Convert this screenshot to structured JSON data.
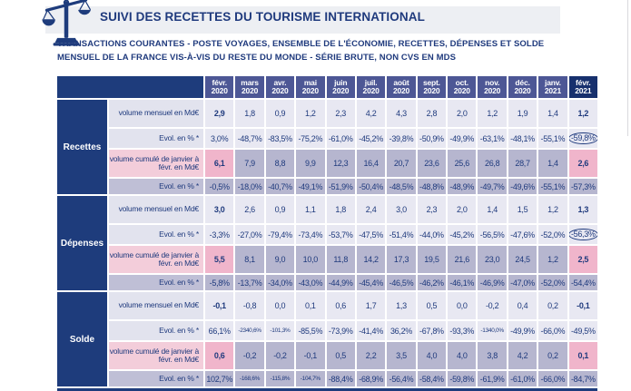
{
  "header": {
    "icon": "scales-of-justice-icon",
    "title": "SUIVI DES RECETTES DU TOURISME INTERNATIONAL",
    "subtitle_line1": "TRANSACTIONS COURANTES - POSTE VOYAGES, ENSEMBLE DE L'ÉCONOMIE, RECETTES, DÉPENSES ET SOLDE",
    "subtitle_line2": "MENSUEL DE LA FRANCE VIS-À-VIS DU RESTE DU MONDE - SÉRIE BRUTE, NON CVS EN MDS"
  },
  "colors": {
    "navy_text": "#1f3a7d",
    "header_dark": "#1e3c7c",
    "header_month": "#4d5795",
    "header_last": "#17306d",
    "row_light": "#e8e8f2",
    "row_light_label": "#e2e3ee",
    "row_dark": "#b6b6cf",
    "row_dark_label": "#bfbfd6",
    "pink_cell": "#f0b5cb",
    "pink_label": "#f3cdda",
    "title_band": "#edeff3"
  },
  "chart_data": {
    "type": "table",
    "columns": [
      {
        "month": "févr.",
        "year": "2020"
      },
      {
        "month": "mars",
        "year": "2020"
      },
      {
        "month": "avr.",
        "year": "2020"
      },
      {
        "month": "mai",
        "year": "2020"
      },
      {
        "month": "juin",
        "year": "2020"
      },
      {
        "month": "juil.",
        "year": "2020"
      },
      {
        "month": "août",
        "year": "2020"
      },
      {
        "month": "sept.",
        "year": "2020"
      },
      {
        "month": "oct.",
        "year": "2020"
      },
      {
        "month": "nov.",
        "year": "2020"
      },
      {
        "month": "déc.",
        "year": "2020"
      },
      {
        "month": "janv.",
        "year": "2021"
      },
      {
        "month": "févr.",
        "year": "2021"
      }
    ],
    "groups": [
      {
        "label": "Recettes",
        "rows": [
          {
            "label": "volume mensuel en Md€",
            "shade": "light",
            "bold_ends": true,
            "values": [
              "2,9",
              "1,8",
              "0,9",
              "1,2",
              "2,3",
              "4,2",
              "4,3",
              "2,8",
              "2,0",
              "1,2",
              "1,9",
              "1,4",
              "1,2"
            ]
          },
          {
            "label": "Evol. en % *",
            "shade": "light",
            "circle_last": true,
            "values": [
              "3,0%",
              "-48,7%",
              "-83,5%",
              "-75,2%",
              "-61,0%",
              "-45,2%",
              "-39,8%",
              "-50,9%",
              "-49,9%",
              "-63,1%",
              "-48,1%",
              "-55,1%",
              "-59,8%"
            ]
          },
          {
            "label": "volume cumulé de janvier à févr. en Md€",
            "shade": "dark",
            "bold_ends": true,
            "pink_label": true,
            "pink_ends": true,
            "values": [
              "6,1",
              "7,9",
              "8,8",
              "9,9",
              "12,3",
              "16,4",
              "20,7",
              "23,6",
              "25,6",
              "26,8",
              "28,7",
              "1,4",
              "2,6"
            ]
          },
          {
            "label": "Evol. en % *",
            "shade": "dark",
            "values": [
              "-0,5%",
              "-18,0%",
              "-40,7%",
              "-49,1%",
              "-51,9%",
              "-50,4%",
              "-48,5%",
              "-48,8%",
              "-48,9%",
              "-49,7%",
              "-49,6%",
              "-55,1%",
              "-57,3%"
            ]
          }
        ]
      },
      {
        "label": "Dépenses",
        "rows": [
          {
            "label": "volume mensuel en Md€",
            "shade": "light",
            "bold_ends": true,
            "values": [
              "3,0",
              "2,6",
              "0,9",
              "1,1",
              "1,8",
              "2,4",
              "3,0",
              "2,3",
              "2,0",
              "1,4",
              "1,5",
              "1,2",
              "1,3"
            ]
          },
          {
            "label": "Evol. en % *",
            "shade": "light",
            "circle_last": true,
            "values": [
              "-3,3%",
              "-27,0%",
              "-79,4%",
              "-73,4%",
              "-53,7%",
              "-47,5%",
              "-51,4%",
              "-44,0%",
              "-45,2%",
              "-56,5%",
              "-47,6%",
              "-52,0%",
              "-56,3%"
            ]
          },
          {
            "label": "volume cumulé de janvier à févr. en Md€",
            "shade": "dark",
            "bold_ends": true,
            "pink_label": true,
            "pink_ends": true,
            "values": [
              "5,5",
              "8,1",
              "9,0",
              "10,0",
              "11,8",
              "14,2",
              "17,3",
              "19,5",
              "21,6",
              "23,0",
              "24,5",
              "1,2",
              "2,5"
            ]
          },
          {
            "label": "Evol. en % *",
            "shade": "dark",
            "values": [
              "-5,8%",
              "-13,7%",
              "-34,0%",
              "-43,0%",
              "-44,9%",
              "-45,4%",
              "-46,5%",
              "-46,2%",
              "-46,1%",
              "-46,9%",
              "-47,0%",
              "-52,0%",
              "-54,4%"
            ]
          }
        ]
      },
      {
        "label": "Solde",
        "rows": [
          {
            "label": "volume mensuel en Md€",
            "shade": "light",
            "bold_ends": true,
            "values": [
              "-0,1",
              "-0,8",
              "0,0",
              "0,1",
              "0,6",
              "1,7",
              "1,3",
              "0,5",
              "0,0",
              "-0,2",
              "0,4",
              "0,2",
              "-0,1"
            ]
          },
          {
            "label": "Evol. en % *",
            "shade": "light",
            "values": [
              "66,1%",
              "-2340,6%",
              "-101,3%",
              "-85,5%",
              "-73,9%",
              "-41,4%",
              "36,2%",
              "-67,8%",
              "-93,3%",
              "-1340,0%",
              "-49,9%",
              "-66,0%",
              "-49,5%"
            ]
          },
          {
            "label": "volume cumulé de janvier à févr. en Md€",
            "shade": "dark",
            "bold_ends": true,
            "pink_label": true,
            "pink_ends": true,
            "values": [
              "0,6",
              "-0,2",
              "-0,2",
              "-0,1",
              "0,5",
              "2,2",
              "3,5",
              "4,0",
              "4,0",
              "3,8",
              "4,2",
              "0,2",
              "0,1"
            ]
          },
          {
            "label": "Evol. en % *",
            "shade": "dark",
            "values": [
              "102,7%",
              "-168,6%",
              "-115,8%",
              "-104,7%",
              "-88,4%",
              "-68,9%",
              "-56,4%",
              "-58,4%",
              "-59,8%",
              "-61,9%",
              "-61,0%",
              "-66,0%",
              "-84,7%"
            ]
          }
        ]
      }
    ]
  }
}
